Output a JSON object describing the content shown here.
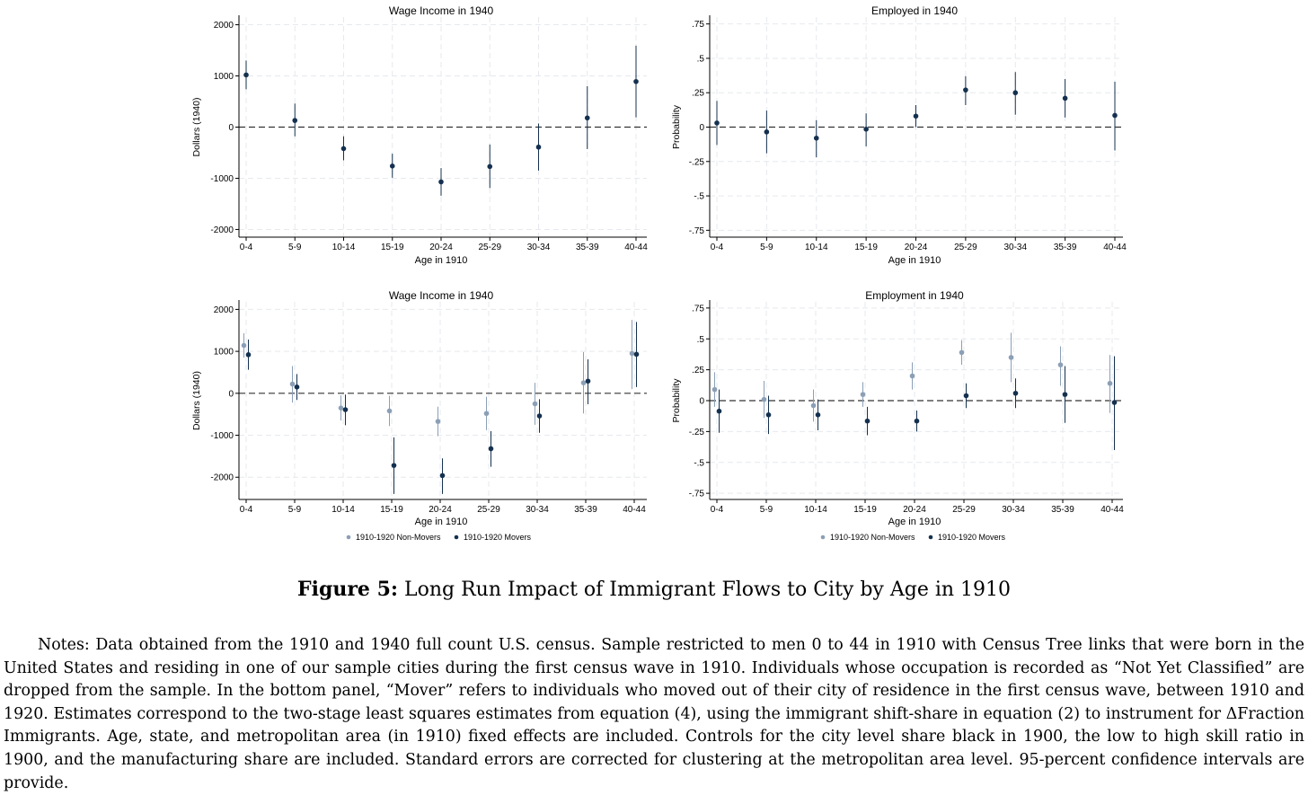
{
  "figure": {
    "caption_label": "Figure 5:",
    "caption_text": "Long Run Impact of Immigrant Flows to City by Age in 1910",
    "notes": "Notes: Data obtained from the 1910 and 1940 full count U.S. census. Sample restricted to men 0 to 44 in 1910 with Census Tree links that were born in the United States and residing in one of our sample cities during the first census wave in 1910. Individuals whose occupation is recorded as “Not Yet Classified” are dropped from the sample. In the bottom panel, “Mover” refers to individuals who moved out of their city of residence in the first census wave, between 1910 and 1920. Estimates correspond to the two-stage least squares estimates from equation (4), using the immigrant shift-share in equation (2) to instrument for ΔFraction Immigrants. Age, state, and metropolitan area (in 1910) fixed effects are included. Controls for the city level share black in 1900, the low to high skill ratio in 1900, and the manufacturing share are included. Standard errors are corrected for clustering at the metropolitan area level. 95-percent confidence intervals are provide."
  },
  "colors": {
    "movers": "#14304f",
    "non_movers": "#8b9fb6",
    "zero_line": "#333333",
    "grid": "#e6e9ee"
  },
  "chart_data": [
    {
      "type": "scatter",
      "title": "Wage Income in 1940",
      "xlabel": "Age in 1910",
      "ylabel": "Dollars (1940)",
      "categories": [
        "0-4",
        "5-9",
        "10-14",
        "15-19",
        "20-24",
        "25-29",
        "30-34",
        "35-39",
        "40-44"
      ],
      "yticks": [
        2000,
        1000,
        0,
        -1000,
        -2000
      ],
      "ytick_labels": [
        "2000",
        "1000",
        "0",
        "-1000",
        "-2000"
      ],
      "ylim": [
        -2150,
        2150
      ],
      "series": [
        {
          "key": "movers",
          "values": [
            1020,
            130,
            -420,
            -760,
            -1070,
            -770,
            -390,
            180,
            890
          ],
          "ci_low": [
            740,
            -180,
            -650,
            -990,
            -1340,
            -1190,
            -850,
            -430,
            190
          ],
          "ci_high": [
            1300,
            460,
            -180,
            -520,
            -800,
            -340,
            70,
            800,
            1590
          ]
        }
      ]
    },
    {
      "type": "scatter",
      "title": "Employed in 1940",
      "xlabel": "Age in 1910",
      "ylabel": "Probability",
      "categories": [
        "0-4",
        "5-9",
        "10-14",
        "15-19",
        "20-24",
        "25-29",
        "30-34",
        "35-39",
        "40-44"
      ],
      "yticks": [
        0.75,
        0.5,
        0.25,
        0,
        -0.25,
        -0.5,
        -0.75
      ],
      "ytick_labels": [
        ".75",
        ".5",
        ".25",
        "0",
        "-.25",
        "-.5",
        "-.75"
      ],
      "ylim": [
        -0.8,
        0.8
      ],
      "series": [
        {
          "key": "movers",
          "values": [
            0.03,
            -0.035,
            -0.08,
            -0.015,
            0.08,
            0.27,
            0.25,
            0.21,
            0.085
          ],
          "ci_low": [
            -0.13,
            -0.19,
            -0.22,
            -0.14,
            0.0,
            0.16,
            0.09,
            0.07,
            -0.17
          ],
          "ci_high": [
            0.19,
            0.12,
            0.05,
            0.1,
            0.16,
            0.37,
            0.4,
            0.35,
            0.33
          ]
        }
      ]
    },
    {
      "type": "scatter",
      "title": "Wage Income in 1940",
      "xlabel": "Age in 1910",
      "ylabel": "Dollars (1940)",
      "categories": [
        "0-4",
        "5-9",
        "10-14",
        "15-19",
        "20-24",
        "25-29",
        "30-34",
        "35-39",
        "40-44"
      ],
      "yticks": [
        2000,
        1000,
        0,
        -1000,
        -2000
      ],
      "ytick_labels": [
        "2000",
        "1000",
        "0",
        "-1000",
        "-2000"
      ],
      "ylim": [
        -2530,
        2180
      ],
      "legend": [
        "1910-1920 Non-Movers",
        "1910-1920  Movers"
      ],
      "series": [
        {
          "key": "non_movers",
          "values": [
            1140,
            220,
            -350,
            -420,
            -670,
            -480,
            -250,
            250,
            950
          ],
          "ci_low": [
            850,
            -220,
            -650,
            -780,
            -1020,
            -880,
            -750,
            -480,
            100
          ],
          "ci_high": [
            1430,
            650,
            -50,
            -60,
            -320,
            -80,
            250,
            980,
            1750
          ]
        },
        {
          "key": "movers",
          "values": [
            920,
            150,
            -390,
            -1720,
            -1960,
            -1320,
            -540,
            290,
            930
          ],
          "ci_low": [
            560,
            -160,
            -760,
            -2400,
            -2400,
            -1750,
            -940,
            -260,
            150
          ],
          "ci_high": [
            1280,
            460,
            -30,
            -1050,
            -1550,
            -900,
            -140,
            810,
            1700
          ]
        }
      ]
    },
    {
      "type": "scatter",
      "title": "Employment in 1940",
      "xlabel": "Age in 1910",
      "ylabel": "Probability",
      "categories": [
        "0-4",
        "5-9",
        "10-14",
        "15-19",
        "20-24",
        "25-29",
        "30-34",
        "35-39",
        "40-44"
      ],
      "yticks": [
        0.75,
        0.5,
        0.25,
        0,
        -0.25,
        -0.5,
        -0.75
      ],
      "ytick_labels": [
        ".75",
        ".5",
        ".25",
        "0",
        "-.25",
        "-.5",
        "-.75"
      ],
      "ylim": [
        -0.8,
        0.8
      ],
      "legend": [
        "1910-1920 Non-Movers",
        "1910-1920  Movers"
      ],
      "series": [
        {
          "key": "non_movers",
          "values": [
            0.09,
            0.01,
            -0.04,
            0.05,
            0.2,
            0.39,
            0.35,
            0.29,
            0.14
          ],
          "ci_low": [
            -0.05,
            -0.14,
            -0.17,
            -0.05,
            0.09,
            0.29,
            0.15,
            0.12,
            -0.1
          ],
          "ci_high": [
            0.23,
            0.16,
            0.09,
            0.15,
            0.31,
            0.49,
            0.55,
            0.44,
            0.37
          ]
        },
        {
          "key": "movers",
          "values": [
            -0.085,
            -0.115,
            -0.115,
            -0.165,
            -0.165,
            0.04,
            0.06,
            0.05,
            -0.015
          ],
          "ci_low": [
            -0.26,
            -0.27,
            -0.24,
            -0.28,
            -0.25,
            -0.06,
            -0.06,
            -0.18,
            -0.4
          ],
          "ci_high": [
            0.09,
            0.04,
            0.01,
            -0.05,
            -0.08,
            0.14,
            0.18,
            0.28,
            0.36
          ]
        }
      ]
    }
  ]
}
